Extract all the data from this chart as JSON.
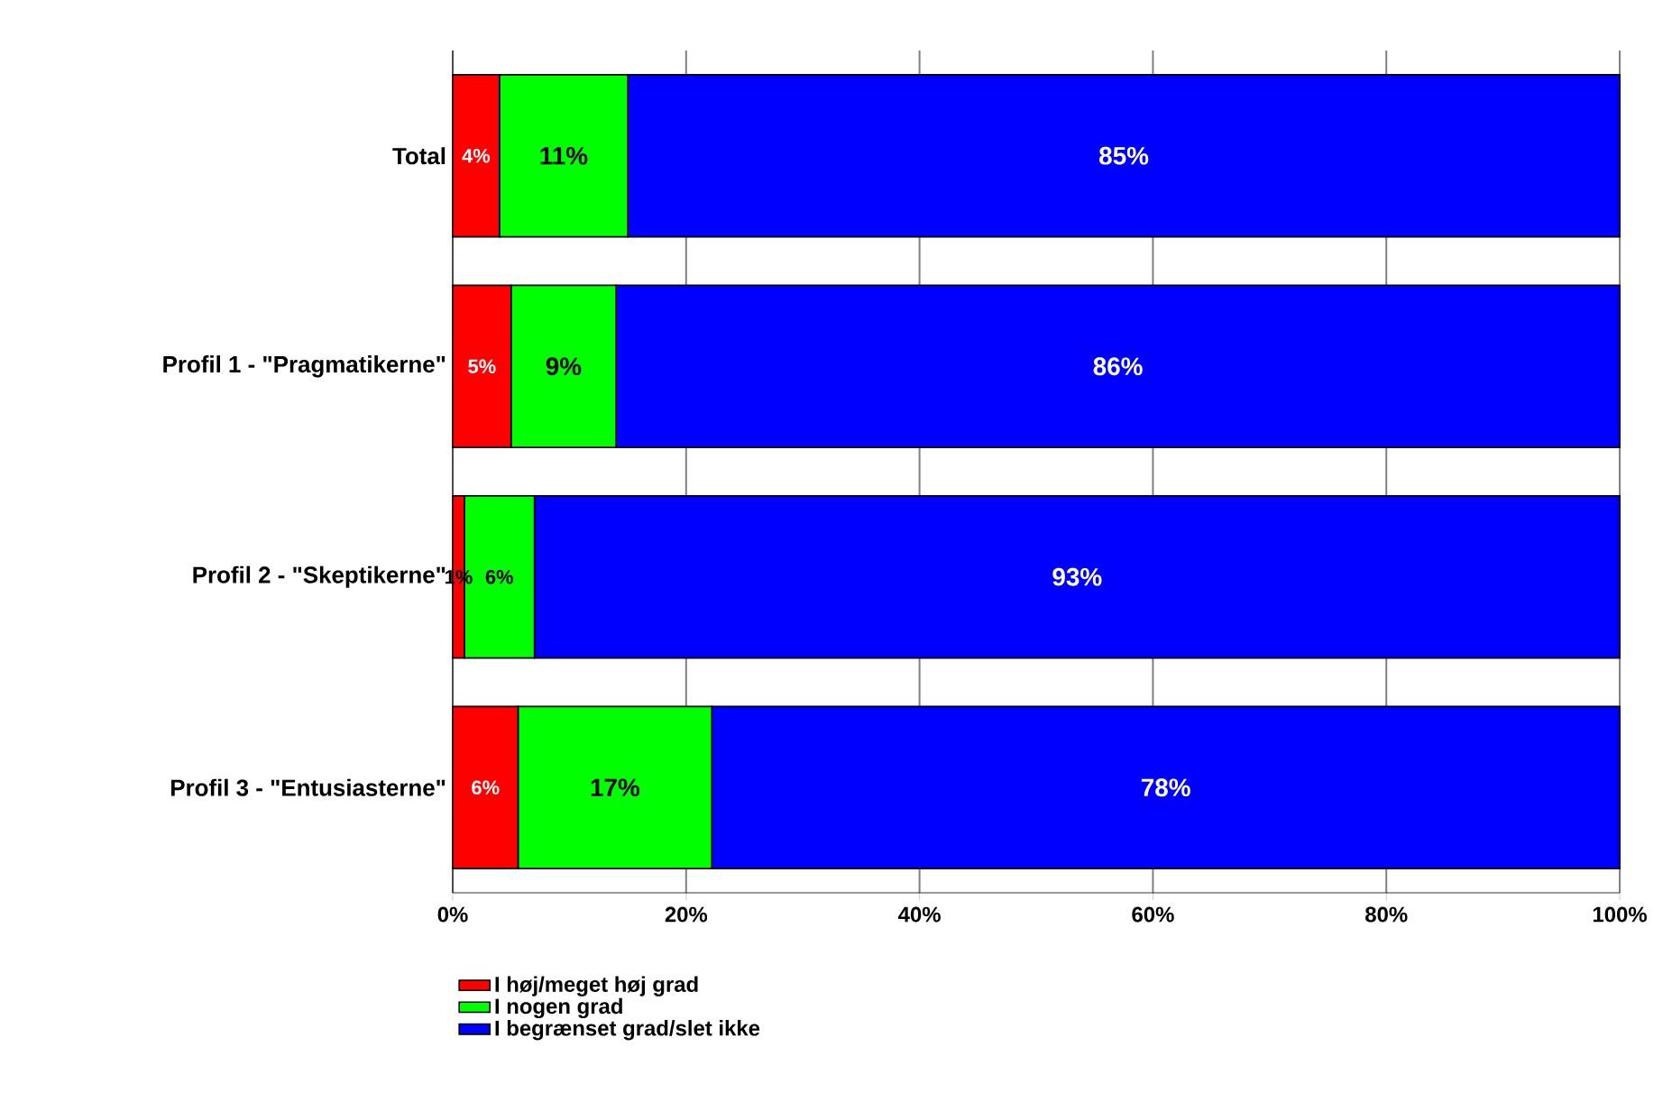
{
  "chart_data": {
    "type": "bar",
    "orientation": "horizontal",
    "stacked": true,
    "categories": [
      "Total",
      "Profil 1 - \"Pragmatikerne\"",
      "Profil 2 - \"Skeptikerne\"",
      "Profil 3 - \"Entusiasterne\""
    ],
    "series": [
      {
        "name": "I høj/meget høj grad",
        "color": "#ff0000",
        "values": [
          4,
          5,
          1,
          5.6
        ],
        "value_labels": [
          "4%",
          "5%",
          "1%",
          "6%"
        ]
      },
      {
        "name": "I nogen grad",
        "color": "#00ff00",
        "values": [
          11,
          9,
          6,
          16.6
        ],
        "value_labels": [
          "11%",
          "9%",
          "6%",
          "17%"
        ]
      },
      {
        "name": "I begrænset grad/slet ikke",
        "color": "#0000ff",
        "values": [
          85,
          86,
          93,
          77.8
        ],
        "value_labels": [
          "85%",
          "86%",
          "93%",
          "78%"
        ]
      }
    ],
    "xlim": [
      0,
      100
    ],
    "xticks": [
      {
        "value": 0,
        "label": "0%"
      },
      {
        "value": 20,
        "label": "20%"
      },
      {
        "value": 40,
        "label": "40%"
      },
      {
        "value": 60,
        "label": "60%"
      },
      {
        "value": 80,
        "label": "80%"
      },
      {
        "value": 100,
        "label": "100%"
      }
    ],
    "grid": "x",
    "legend": "bottom left"
  }
}
